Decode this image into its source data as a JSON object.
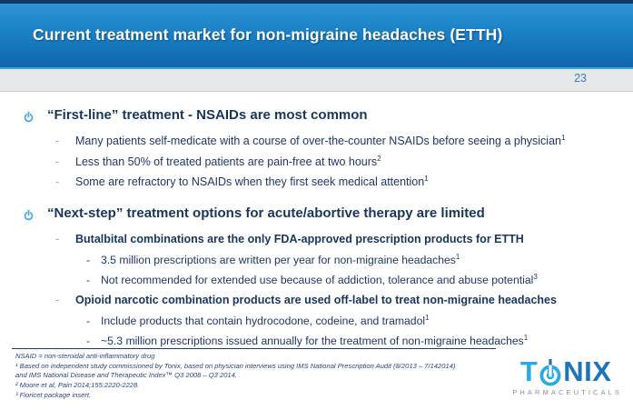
{
  "slide": {
    "title": "Current treatment market for non-migraine headaches (ETTH)",
    "page_number": "23"
  },
  "sections": [
    {
      "heading": "“First-line” treatment - NSAIDs are most common",
      "items": [
        {
          "level": 2,
          "bold": false,
          "text": "Many patients self-medicate with a course of over-the-counter NSAIDs before seeing a physician",
          "sup": "1"
        },
        {
          "level": 2,
          "bold": false,
          "text": "Less than 50% of treated patients are pain-free at two hours",
          "sup": "2"
        },
        {
          "level": 2,
          "bold": false,
          "text": "Some are refractory to NSAIDs when they first seek medical attention",
          "sup": "1"
        }
      ]
    },
    {
      "heading": "“Next-step” treatment options for acute/abortive therapy are limited",
      "items": [
        {
          "level": 2,
          "bold": true,
          "text": "Butalbital combinations are the only FDA-approved prescription products for ETTH",
          "sup": ""
        },
        {
          "level": 3,
          "bold": false,
          "text": "3.5 million prescriptions are written per year for non-migraine headaches",
          "sup": "1"
        },
        {
          "level": 3,
          "bold": false,
          "text": "Not recommended for extended use because of addiction, tolerance and abuse potential",
          "sup": "3"
        },
        {
          "level": 2,
          "bold": true,
          "text": "Opioid narcotic combination products are used off-label to treat non-migraine headaches",
          "sup": ""
        },
        {
          "level": 3,
          "bold": false,
          "text": "Include products that contain hydrocodone, codeine, and tramadol",
          "sup": "1"
        },
        {
          "level": 3,
          "bold": false,
          "text": "~5.3 million prescriptions issued annually for the treatment of non-migraine headaches",
          "sup": "1"
        }
      ]
    }
  ],
  "footnotes": {
    "lines": [
      "NSAID = non-steroidal anti-inflammatory drug",
      "¹ Based on independent study commissioned by Tonix, based on physician interviews using IMS National Prescription Audit (8/2013 – 7/142014)",
      "and IMS National Disease and Therapeutic Index™ Q3 2008 – Q3 2014.",
      "² Moore et al, Pain 2014;155:2220-2228.",
      "³ Fioricet package insert."
    ]
  },
  "logo": {
    "letter_t": "T",
    "letters_nix": "NIX",
    "subtitle": "PHARMACEUTICALS",
    "power_icon": "power-symbol"
  },
  "colors": {
    "header_blue": "#1B81C7",
    "header_top_border": "#0C3C66",
    "navy_text": "#1F3864",
    "heading_navy": "#17365D",
    "accent_light_blue": "#29ABE2",
    "logo_dark_blue": "#1C75BC",
    "page_number_blue": "#3B7CB6",
    "gray_band": "#E7E8E9"
  }
}
